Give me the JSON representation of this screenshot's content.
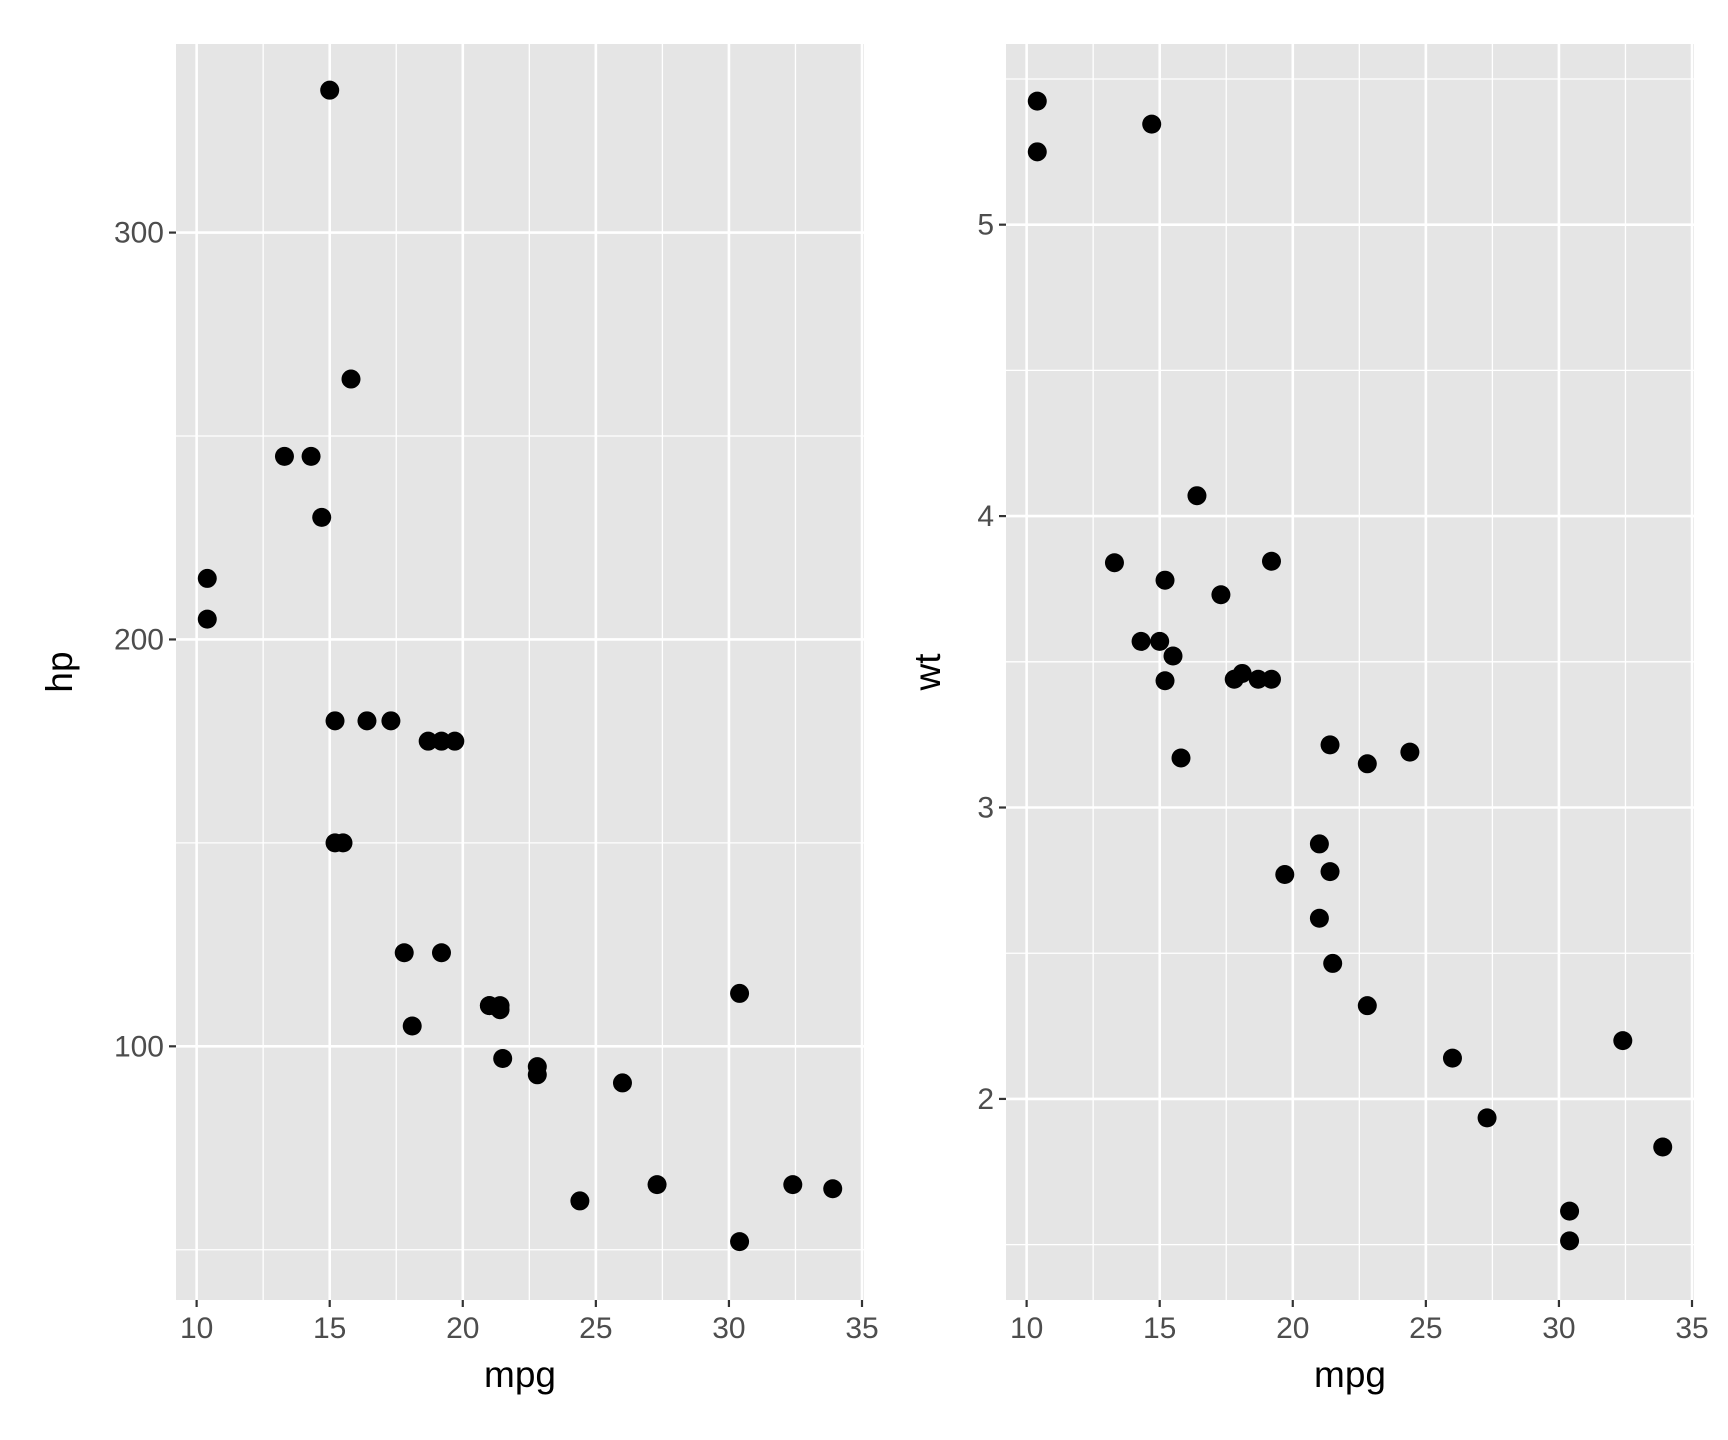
{
  "chart_data": [
    {
      "type": "scatter",
      "title": "",
      "xlabel": "mpg",
      "ylabel": "hp",
      "xlim": [
        9.225,
        35.075
      ],
      "ylim": [
        37.65,
        346.35
      ],
      "x_ticks": [
        10,
        15,
        20,
        25,
        30,
        35
      ],
      "y_ticks": [
        100,
        200,
        300
      ],
      "x_tick_labels": [
        "10",
        "15",
        "20",
        "25",
        "30",
        "35"
      ],
      "y_tick_labels": [
        "100",
        "200",
        "300"
      ],
      "grid": true,
      "point_color": "#000000",
      "panel_color": "#e5e5e5",
      "x": [
        21,
        21,
        22.8,
        21.4,
        18.7,
        18.1,
        14.3,
        24.4,
        22.8,
        19.2,
        17.8,
        16.4,
        17.3,
        15.2,
        10.4,
        10.4,
        14.7,
        32.4,
        30.4,
        33.9,
        21.5,
        15.5,
        15.2,
        13.3,
        19.2,
        27.3,
        26,
        30.4,
        15.8,
        19.7,
        15,
        21.4
      ],
      "y": [
        110,
        110,
        93,
        110,
        175,
        105,
        245,
        62,
        95,
        123,
        123,
        180,
        180,
        180,
        205,
        215,
        230,
        66,
        52,
        65,
        97,
        150,
        150,
        245,
        175,
        66,
        91,
        113,
        264,
        175,
        335,
        109
      ]
    },
    {
      "type": "scatter",
      "title": "",
      "xlabel": "mpg",
      "ylabel": "wt",
      "xlim": [
        9.225,
        35.075
      ],
      "ylim": [
        1.31,
        5.62
      ],
      "x_ticks": [
        10,
        15,
        20,
        25,
        30,
        35
      ],
      "y_ticks": [
        2,
        3,
        4,
        5
      ],
      "x_tick_labels": [
        "10",
        "15",
        "20",
        "25",
        "30",
        "35"
      ],
      "y_tick_labels": [
        "2",
        "3",
        "4",
        "5"
      ],
      "grid": true,
      "point_color": "#000000",
      "panel_color": "#e5e5e5",
      "x": [
        21,
        21,
        22.8,
        21.4,
        18.7,
        18.1,
        14.3,
        24.4,
        22.8,
        19.2,
        17.8,
        16.4,
        17.3,
        15.2,
        10.4,
        10.4,
        14.7,
        32.4,
        30.4,
        33.9,
        21.5,
        15.5,
        15.2,
        13.3,
        19.2,
        27.3,
        26,
        30.4,
        15.8,
        19.7,
        15,
        21.4
      ],
      "y": [
        2.62,
        2.875,
        2.32,
        3.215,
        3.44,
        3.46,
        3.57,
        3.19,
        3.15,
        3.44,
        3.44,
        4.07,
        3.73,
        3.78,
        5.25,
        5.424,
        5.345,
        2.2,
        1.615,
        1.835,
        2.465,
        3.52,
        3.435,
        3.84,
        3.845,
        1.935,
        2.14,
        1.513,
        3.17,
        2.77,
        3.57,
        2.78
      ]
    }
  ]
}
